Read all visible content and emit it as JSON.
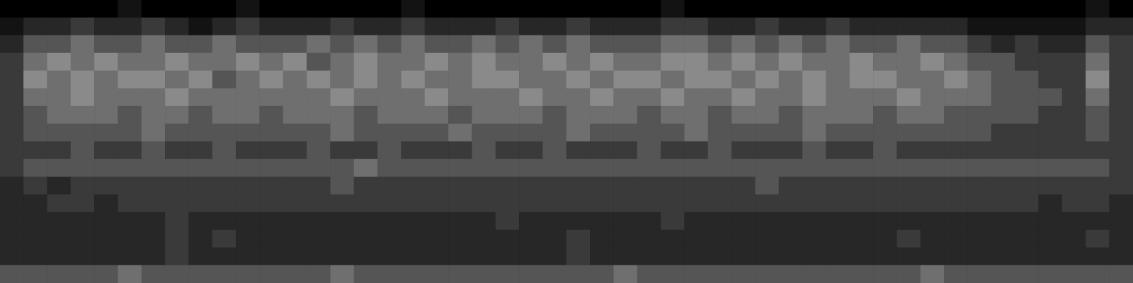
{
  "chart_data": {
    "type": "heatmap",
    "tick_labels": false,
    "grid": false,
    "zlim": [
      0,
      9
    ],
    "cells": [
      [
        0,
        0,
        0,
        0,
        0,
        1,
        0,
        0,
        0,
        0,
        1,
        0,
        0,
        0,
        0,
        0,
        0,
        1,
        0,
        0,
        0,
        0,
        0,
        0,
        0,
        0,
        0,
        0,
        1,
        0,
        0,
        0,
        0,
        0,
        0,
        0,
        0,
        0,
        0,
        0,
        0,
        0,
        0,
        0,
        0,
        0,
        1,
        0
      ],
      [
        1,
        2,
        2,
        3,
        2,
        2,
        3,
        2,
        1,
        2,
        3,
        2,
        2,
        2,
        3,
        2,
        2,
        3,
        2,
        2,
        2,
        3,
        2,
        2,
        3,
        2,
        2,
        2,
        3,
        3,
        2,
        2,
        3,
        2,
        2,
        3,
        2,
        2,
        2,
        2,
        2,
        1,
        1,
        1,
        1,
        1,
        2,
        2
      ],
      [
        2,
        4,
        4,
        5,
        4,
        4,
        5,
        4,
        4,
        5,
        4,
        4,
        4,
        5,
        4,
        5,
        4,
        5,
        4,
        4,
        5,
        4,
        5,
        4,
        5,
        4,
        4,
        4,
        5,
        5,
        4,
        5,
        4,
        5,
        4,
        5,
        4,
        4,
        5,
        4,
        4,
        3,
        2,
        3,
        2,
        2,
        4,
        3
      ],
      [
        3,
        5,
        6,
        5,
        6,
        5,
        5,
        6,
        5,
        5,
        6,
        5,
        6,
        4,
        5,
        6,
        5,
        5,
        6,
        5,
        6,
        5,
        5,
        6,
        5,
        6,
        5,
        5,
        6,
        6,
        5,
        6,
        5,
        6,
        5,
        5,
        6,
        5,
        5,
        6,
        5,
        4,
        4,
        3,
        3,
        3,
        5,
        3
      ],
      [
        3,
        6,
        5,
        6,
        5,
        6,
        6,
        5,
        6,
        4,
        5,
        6,
        5,
        6,
        5,
        6,
        5,
        6,
        5,
        5,
        6,
        6,
        5,
        5,
        6,
        5,
        6,
        6,
        5,
        6,
        6,
        5,
        6,
        5,
        6,
        5,
        6,
        6,
        5,
        5,
        6,
        5,
        4,
        4,
        3,
        3,
        6,
        3
      ],
      [
        3,
        5,
        5,
        6,
        5,
        5,
        5,
        6,
        5,
        5,
        5,
        5,
        5,
        5,
        6,
        5,
        5,
        5,
        6,
        5,
        5,
        5,
        6,
        5,
        5,
        6,
        5,
        5,
        6,
        5,
        5,
        6,
        5,
        5,
        6,
        5,
        5,
        5,
        6,
        5,
        5,
        5,
        4,
        4,
        4,
        3,
        5,
        3
      ],
      [
        3,
        4,
        5,
        5,
        5,
        4,
        5,
        5,
        4,
        5,
        5,
        4,
        5,
        5,
        5,
        4,
        5,
        5,
        5,
        4,
        5,
        5,
        5,
        4,
        5,
        5,
        5,
        4,
        5,
        5,
        4,
        5,
        5,
        4,
        5,
        5,
        5,
        4,
        5,
        5,
        4,
        4,
        4,
        4,
        3,
        3,
        4,
        3
      ],
      [
        3,
        4,
        4,
        4,
        4,
        4,
        5,
        4,
        4,
        4,
        4,
        4,
        4,
        4,
        5,
        4,
        4,
        4,
        4,
        5,
        4,
        4,
        4,
        4,
        5,
        4,
        4,
        4,
        4,
        5,
        4,
        4,
        4,
        4,
        5,
        4,
        4,
        4,
        4,
        4,
        4,
        4,
        3,
        3,
        3,
        3,
        4,
        3
      ],
      [
        3,
        3,
        3,
        4,
        3,
        3,
        4,
        3,
        3,
        4,
        3,
        3,
        3,
        4,
        3,
        3,
        4,
        3,
        3,
        3,
        4,
        3,
        3,
        4,
        3,
        3,
        3,
        4,
        3,
        3,
        4,
        3,
        3,
        3,
        4,
        3,
        3,
        4,
        3,
        3,
        3,
        3,
        3,
        3,
        3,
        3,
        3,
        3
      ],
      [
        3,
        4,
        4,
        4,
        4,
        4,
        4,
        4,
        4,
        4,
        4,
        4,
        4,
        4,
        4,
        5,
        4,
        4,
        4,
        4,
        4,
        4,
        4,
        4,
        4,
        4,
        4,
        4,
        4,
        4,
        4,
        4,
        4,
        4,
        4,
        4,
        4,
        4,
        4,
        4,
        4,
        4,
        4,
        4,
        4,
        4,
        4,
        3
      ],
      [
        2,
        3,
        2,
        3,
        3,
        3,
        3,
        3,
        3,
        3,
        3,
        3,
        3,
        3,
        4,
        3,
        3,
        3,
        3,
        3,
        3,
        3,
        3,
        3,
        3,
        3,
        3,
        3,
        3,
        3,
        3,
        3,
        4,
        3,
        3,
        3,
        3,
        3,
        3,
        3,
        3,
        3,
        3,
        3,
        3,
        3,
        3,
        3
      ],
      [
        2,
        2,
        3,
        3,
        2,
        3,
        3,
        3,
        3,
        3,
        3,
        3,
        3,
        3,
        3,
        3,
        3,
        3,
        3,
        3,
        3,
        3,
        3,
        3,
        3,
        3,
        3,
        3,
        3,
        3,
        3,
        3,
        3,
        3,
        3,
        3,
        3,
        3,
        3,
        3,
        3,
        3,
        3,
        3,
        2,
        3,
        3,
        2
      ],
      [
        2,
        2,
        2,
        2,
        2,
        2,
        2,
        3,
        2,
        2,
        2,
        2,
        2,
        2,
        2,
        2,
        2,
        2,
        2,
        2,
        2,
        3,
        2,
        2,
        2,
        2,
        2,
        2,
        3,
        2,
        2,
        2,
        2,
        2,
        2,
        2,
        2,
        2,
        2,
        2,
        2,
        2,
        2,
        2,
        2,
        2,
        2,
        2
      ],
      [
        2,
        2,
        2,
        2,
        2,
        2,
        2,
        3,
        2,
        3,
        2,
        2,
        2,
        2,
        2,
        2,
        2,
        2,
        2,
        2,
        2,
        2,
        2,
        2,
        3,
        2,
        2,
        2,
        2,
        2,
        2,
        2,
        2,
        2,
        2,
        2,
        2,
        2,
        3,
        2,
        2,
        2,
        2,
        2,
        2,
        2,
        3,
        2
      ],
      [
        2,
        2,
        2,
        2,
        2,
        2,
        2,
        3,
        2,
        2,
        2,
        2,
        2,
        2,
        2,
        2,
        2,
        2,
        2,
        2,
        2,
        2,
        2,
        2,
        3,
        2,
        2,
        2,
        2,
        2,
        2,
        2,
        2,
        2,
        2,
        2,
        2,
        2,
        2,
        2,
        2,
        2,
        2,
        2,
        2,
        2,
        2,
        2
      ],
      [
        4,
        4,
        4,
        4,
        4,
        5,
        4,
        4,
        4,
        4,
        4,
        4,
        4,
        4,
        5,
        4,
        4,
        4,
        4,
        4,
        4,
        4,
        4,
        4,
        4,
        4,
        5,
        4,
        4,
        4,
        4,
        4,
        4,
        4,
        4,
        4,
        4,
        4,
        4,
        5,
        4,
        4,
        4,
        4,
        4,
        4,
        4,
        4
      ]
    ]
  }
}
